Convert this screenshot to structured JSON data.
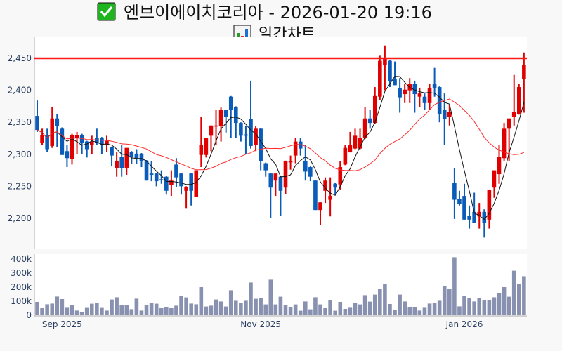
{
  "title": {
    "icon": "check-mark-icon",
    "text": "엔브이에이치코리아 - 2026-01-20 19:16"
  },
  "subtitle": {
    "icon": "bar-chart-icon",
    "text": "일간차트"
  },
  "colors": {
    "up": "#e00000",
    "down": "#0a5cb8",
    "ma5": "#111111",
    "ma20": "#ff2a2a",
    "ref_line": "#ff1a1a",
    "volume": "#8991b0"
  },
  "chart_data": {
    "type": "candlestick",
    "title": "일간차트",
    "price_axis": {
      "range": [
        2152,
        2475
      ],
      "ticks": [
        2200,
        2250,
        2300,
        2350,
        2400,
        2450
      ],
      "tick_labels": [
        "2,200",
        "2,250",
        "2,300",
        "2,350",
        "2,400",
        "2,450"
      ]
    },
    "volume_axis": {
      "range": [
        0,
        430
      ],
      "unit": "k",
      "ticks": [
        0,
        100,
        200,
        300,
        400
      ],
      "tick_labels": [
        "0",
        "100k",
        "200k",
        "300k",
        "400k"
      ]
    },
    "x_ticks": [
      {
        "label": "Sep 2025",
        "index": 5
      },
      {
        "label": "Nov 2025",
        "index": 45
      },
      {
        "label": "Jan 2026",
        "index": 86
      }
    ],
    "reference_line": 2450,
    "moving_averages": [
      {
        "name": "MA5",
        "period": 5
      },
      {
        "name": "MA20",
        "period": 20
      }
    ],
    "ohlc": [
      [
        2360,
        2384,
        2335,
        2338
      ],
      [
        2318,
        2340,
        2314,
        2330
      ],
      [
        2330,
        2340,
        2304,
        2308
      ],
      [
        2313,
        2374,
        2310,
        2356
      ],
      [
        2356,
        2363,
        2311,
        2344
      ],
      [
        2340,
        2342,
        2299,
        2299
      ],
      [
        2305,
        2314,
        2280,
        2294
      ],
      [
        2293,
        2332,
        2284,
        2330
      ],
      [
        2326,
        2335,
        2300,
        2330
      ],
      [
        2330,
        2332,
        2300,
        2318
      ],
      [
        2320,
        2321,
        2295,
        2308
      ],
      [
        2314,
        2329,
        2300,
        2320
      ],
      [
        2325,
        2340,
        2315,
        2318
      ],
      [
        2325,
        2327,
        2300,
        2314
      ],
      [
        2314,
        2329,
        2304,
        2321
      ],
      [
        2311,
        2312,
        2281,
        2298
      ],
      [
        2278,
        2303,
        2265,
        2290
      ],
      [
        2296,
        2314,
        2265,
        2278
      ],
      [
        2279,
        2310,
        2268,
        2310
      ],
      [
        2304,
        2305,
        2285,
        2296
      ],
      [
        2301,
        2308,
        2285,
        2294
      ],
      [
        2300,
        2302,
        2280,
        2289
      ],
      [
        2290,
        2291,
        2259,
        2259
      ],
      [
        2270,
        2289,
        2258,
        2268
      ],
      [
        2270,
        2271,
        2250,
        2258
      ],
      [
        2261,
        2275,
        2254,
        2260
      ],
      [
        2265,
        2266,
        2237,
        2243
      ],
      [
        2252,
        2275,
        2235,
        2259
      ],
      [
        2284,
        2294,
        2249,
        2264
      ],
      [
        2270,
        2271,
        2237,
        2250
      ],
      [
        2243,
        2250,
        2215,
        2249
      ],
      [
        2270,
        2271,
        2220,
        2243
      ],
      [
        2233,
        2275,
        2233,
        2275
      ],
      [
        2299,
        2359,
        2280,
        2314
      ],
      [
        2299,
        2325,
        2295,
        2325
      ],
      [
        2329,
        2345,
        2305,
        2345
      ],
      [
        2344,
        2369,
        2314,
        2345
      ],
      [
        2344,
        2373,
        2320,
        2369
      ],
      [
        2369,
        2370,
        2334,
        2359
      ],
      [
        2390,
        2391,
        2326,
        2369
      ],
      [
        2374,
        2375,
        2326,
        2349
      ],
      [
        2349,
        2350,
        2320,
        2329
      ],
      [
        2331,
        2344,
        2300,
        2329
      ],
      [
        2355,
        2415,
        2309,
        2313
      ],
      [
        2314,
        2344,
        2305,
        2340
      ],
      [
        2340,
        2341,
        2275,
        2289
      ],
      [
        2286,
        2287,
        2265,
        2275
      ],
      [
        2270,
        2271,
        2200,
        2248
      ],
      [
        2259,
        2270,
        2235,
        2270
      ],
      [
        2265,
        2266,
        2204,
        2243
      ],
      [
        2248,
        2290,
        2238,
        2290
      ],
      [
        2288,
        2298,
        2276,
        2289
      ],
      [
        2298,
        2325,
        2286,
        2320
      ],
      [
        2320,
        2325,
        2298,
        2309
      ],
      [
        2290,
        2314,
        2259,
        2273
      ],
      [
        2280,
        2281,
        2258,
        2265
      ],
      [
        2259,
        2260,
        2213,
        2213
      ],
      [
        2213,
        2225,
        2190,
        2225
      ],
      [
        2243,
        2264,
        2224,
        2259
      ],
      [
        2229,
        2264,
        2203,
        2235
      ],
      [
        2254,
        2255,
        2237,
        2248
      ],
      [
        2253,
        2289,
        2245,
        2280
      ],
      [
        2284,
        2314,
        2283,
        2310
      ],
      [
        2303,
        2335,
        2303,
        2314
      ],
      [
        2309,
        2340,
        2308,
        2329
      ],
      [
        2309,
        2340,
        2308,
        2325
      ],
      [
        2325,
        2374,
        2324,
        2356
      ],
      [
        2356,
        2369,
        2340,
        2349
      ],
      [
        2349,
        2405,
        2348,
        2391
      ],
      [
        2390,
        2454,
        2385,
        2446
      ],
      [
        2439,
        2470,
        2400,
        2450
      ],
      [
        2446,
        2447,
        2405,
        2414
      ],
      [
        2417,
        2445,
        2408,
        2408
      ],
      [
        2404,
        2419,
        2365,
        2389
      ],
      [
        2394,
        2410,
        2380,
        2401
      ],
      [
        2400,
        2419,
        2380,
        2410
      ],
      [
        2410,
        2415,
        2365,
        2394
      ],
      [
        2390,
        2404,
        2374,
        2395
      ],
      [
        2390,
        2395,
        2369,
        2380
      ],
      [
        2380,
        2410,
        2369,
        2404
      ],
      [
        2410,
        2435,
        2390,
        2404
      ],
      [
        2405,
        2406,
        2350,
        2363
      ],
      [
        2370,
        2395,
        2314,
        2355
      ],
      [
        2359,
        2377,
        2345,
        2366
      ],
      [
        2255,
        2279,
        2199,
        2229
      ],
      [
        2230,
        2243,
        2220,
        2223
      ],
      [
        2235,
        2254,
        2198,
        2198
      ],
      [
        2204,
        2220,
        2184,
        2198
      ],
      [
        2210,
        2240,
        2193,
        2193
      ],
      [
        2203,
        2224,
        2184,
        2210
      ],
      [
        2210,
        2214,
        2170,
        2193
      ],
      [
        2198,
        2245,
        2184,
        2245
      ],
      [
        2248,
        2275,
        2232,
        2275
      ],
      [
        2269,
        2314,
        2254,
        2296
      ],
      [
        2294,
        2349,
        2290,
        2340
      ],
      [
        2340,
        2356,
        2290,
        2356
      ],
      [
        2358,
        2424,
        2345,
        2366
      ],
      [
        2363,
        2410,
        2362,
        2405
      ],
      [
        2418,
        2459,
        2365,
        2440
      ]
    ],
    "volume_k": [
      95,
      50,
      78,
      83,
      133,
      115,
      53,
      73,
      33,
      22,
      52,
      82,
      87,
      52,
      33,
      112,
      128,
      75,
      72,
      43,
      118,
      33,
      70,
      90,
      82,
      50,
      60,
      50,
      68,
      138,
      127,
      83,
      78,
      200,
      62,
      68,
      112,
      98,
      62,
      178,
      103,
      87,
      103,
      233,
      117,
      123,
      77,
      253,
      77,
      132,
      70,
      55,
      77,
      32,
      98,
      42,
      128,
      77,
      50,
      108,
      32,
      95,
      45,
      53,
      85,
      77,
      143,
      97,
      147,
      188,
      223,
      80,
      40,
      147,
      98,
      57,
      57,
      33,
      53,
      83,
      88,
      103,
      208,
      190,
      413,
      63,
      140,
      123,
      98,
      120,
      110,
      108,
      128,
      158,
      200,
      132,
      317,
      220,
      278
    ]
  }
}
